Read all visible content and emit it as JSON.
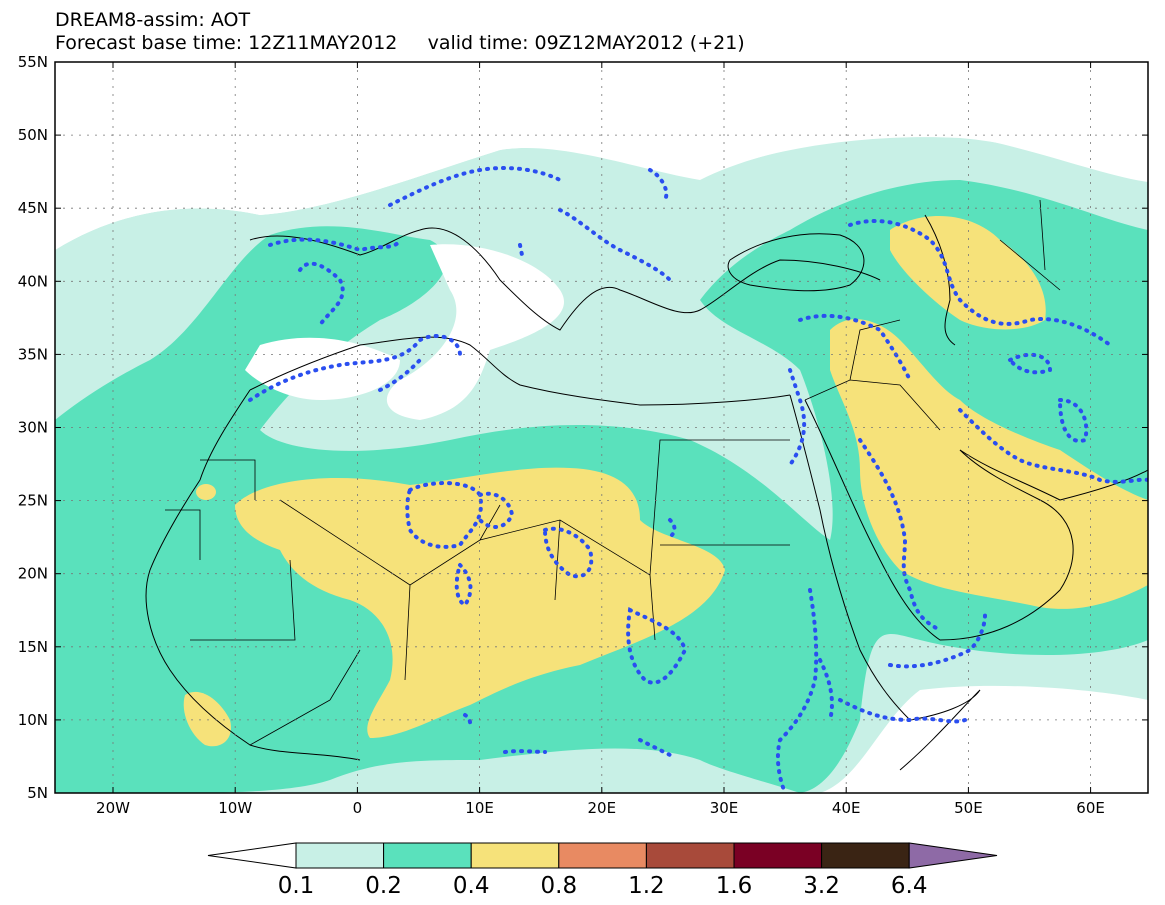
{
  "title": {
    "line1": "DREAM8-assim: AOT",
    "line2_base": "Forecast base time: 12Z11MAY2012",
    "line2_valid": "valid time: 09Z12MAY2012 (+21)"
  },
  "lat_labels": [
    "55N",
    "50N",
    "45N",
    "40N",
    "35N",
    "30N",
    "25N",
    "20N",
    "15N",
    "10N",
    "5N"
  ],
  "lon_labels": [
    "20W",
    "10W",
    "0",
    "10E",
    "20E",
    "30E",
    "40E",
    "50E",
    "60E"
  ],
  "colorbar": {
    "labels": [
      "0.1",
      "0.2",
      "0.4",
      "0.8",
      "1.2",
      "1.6",
      "3.2",
      "6.4"
    ],
    "colors": [
      "#ffffff",
      "#c8f0e6",
      "#5ae1bc",
      "#f6e27a",
      "#e88a62",
      "#a84a3a",
      "#7a0024",
      "#3a2414",
      "#8e6aa6"
    ]
  },
  "legend_colors": {
    "low": "#c8f0e6",
    "mid": "#5ae1bc",
    "high": "#f6e27a",
    "contour": "#2a4ef0"
  }
}
